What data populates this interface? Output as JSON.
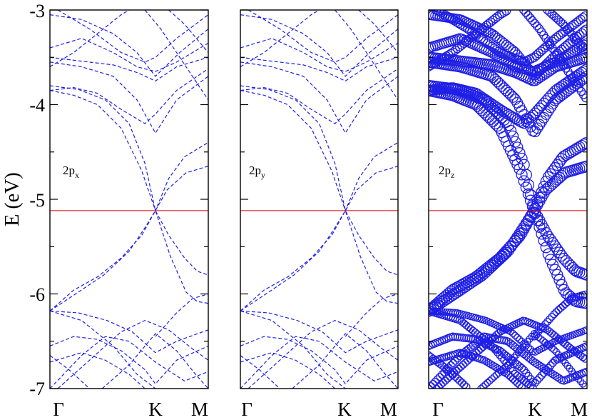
{
  "chart_data": {
    "type": "line",
    "ylabel": "E (eV)",
    "ylim": [
      -7,
      -3
    ],
    "y_ticks": [
      -3,
      -4,
      -5,
      -6,
      -7
    ],
    "y_tick_labels": [
      "-3",
      "-4",
      "-5",
      "-6",
      "-7"
    ],
    "x_ticks": [
      {
        "pos": 0.0,
        "label": "Γ"
      },
      {
        "pos": 0.666,
        "label": "K"
      },
      {
        "pos": 1.0,
        "label": "M"
      }
    ],
    "fermi_level": -5.12,
    "grid": false,
    "panels": [
      {
        "orbital": "2p",
        "subscript": "x",
        "style": "dashed",
        "weighting": "uniform"
      },
      {
        "orbital": "2p",
        "subscript": "y",
        "style": "dashed",
        "weighting": "uniform"
      },
      {
        "orbital": "2p",
        "subscript": "z",
        "style": "circles",
        "weighting": "projected"
      }
    ],
    "series": [
      {
        "w": 0.3,
        "values": [
          [
            0.0,
            -6.18
          ],
          [
            0.18,
            -6.2
          ],
          [
            0.36,
            -6.28
          ],
          [
            0.52,
            -6.4
          ],
          [
            0.666,
            -6.62
          ],
          [
            0.8,
            -6.5
          ],
          [
            1.0,
            -6.38
          ]
        ]
      },
      {
        "w": 0.35,
        "values": [
          [
            0.0,
            -6.18
          ],
          [
            0.2,
            -6.28
          ],
          [
            0.4,
            -6.55
          ],
          [
            0.55,
            -6.85
          ],
          [
            0.666,
            -7.0
          ]
        ]
      },
      {
        "w": 0.9,
        "values": [
          [
            0.0,
            -6.18
          ],
          [
            0.15,
            -5.96
          ],
          [
            0.3,
            -5.82
          ],
          [
            0.45,
            -5.62
          ],
          [
            0.58,
            -5.38
          ],
          [
            0.666,
            -5.12
          ],
          [
            0.75,
            -5.38
          ],
          [
            0.85,
            -5.62
          ],
          [
            0.93,
            -5.76
          ],
          [
            1.0,
            -5.8
          ]
        ]
      },
      {
        "w": 0.9,
        "values": [
          [
            0.0,
            -6.18
          ],
          [
            0.18,
            -5.98
          ],
          [
            0.34,
            -5.8
          ],
          [
            0.5,
            -5.55
          ],
          [
            0.6,
            -5.3
          ],
          [
            0.666,
            -5.12
          ],
          [
            0.76,
            -5.6
          ],
          [
            0.86,
            -5.98
          ],
          [
            0.93,
            -6.08
          ],
          [
            1.0,
            -6.1
          ]
        ]
      },
      {
        "w": 0.9,
        "values": [
          [
            0.0,
            -3.85
          ],
          [
            0.15,
            -3.9
          ],
          [
            0.3,
            -4.0
          ],
          [
            0.45,
            -4.25
          ],
          [
            0.58,
            -4.7
          ],
          [
            0.666,
            -5.12
          ],
          [
            0.75,
            -4.78
          ],
          [
            0.85,
            -4.55
          ],
          [
            1.0,
            -4.4
          ]
        ]
      },
      {
        "w": 0.9,
        "values": [
          [
            0.0,
            -3.8
          ],
          [
            0.18,
            -3.84
          ],
          [
            0.35,
            -3.95
          ],
          [
            0.5,
            -4.2
          ],
          [
            0.6,
            -4.62
          ],
          [
            0.666,
            -5.12
          ],
          [
            0.74,
            -4.9
          ],
          [
            0.86,
            -4.72
          ],
          [
            1.0,
            -4.65
          ]
        ]
      },
      {
        "w": 0.85,
        "values": [
          [
            0.0,
            -3.55
          ],
          [
            0.2,
            -3.6
          ],
          [
            0.4,
            -3.7
          ],
          [
            0.55,
            -3.95
          ],
          [
            0.666,
            -4.3
          ],
          [
            0.8,
            -3.95
          ],
          [
            1.0,
            -3.7
          ]
        ]
      },
      {
        "w": 0.85,
        "values": [
          [
            0.0,
            -3.5
          ],
          [
            0.2,
            -3.54
          ],
          [
            0.4,
            -3.58
          ],
          [
            0.55,
            -3.66
          ],
          [
            0.666,
            -3.75
          ],
          [
            0.8,
            -3.6
          ],
          [
            1.0,
            -3.5
          ]
        ]
      },
      {
        "w": 0.8,
        "values": [
          [
            0.0,
            -3.85
          ],
          [
            0.15,
            -3.82
          ],
          [
            0.3,
            -3.88
          ],
          [
            0.45,
            -4.05
          ],
          [
            0.6,
            -4.2
          ],
          [
            0.666,
            -4.1
          ],
          [
            0.8,
            -3.85
          ],
          [
            1.0,
            -3.62
          ]
        ]
      },
      {
        "w": 0.75,
        "values": [
          [
            0.0,
            -3.4
          ],
          [
            0.2,
            -3.3
          ],
          [
            0.4,
            -3.45
          ],
          [
            0.55,
            -3.6
          ],
          [
            0.666,
            -3.65
          ],
          [
            0.8,
            -3.55
          ],
          [
            1.0,
            -3.35
          ]
        ]
      },
      {
        "w": 0.7,
        "values": [
          [
            0.0,
            -3.05
          ],
          [
            0.2,
            -3.1
          ],
          [
            0.4,
            -3.25
          ],
          [
            0.55,
            -3.45
          ],
          [
            0.666,
            -3.7
          ],
          [
            0.82,
            -3.45
          ],
          [
            1.0,
            -3.2
          ]
        ]
      },
      {
        "w": 0.6,
        "values": [
          [
            0.05,
            -3.0
          ],
          [
            0.25,
            -3.2
          ],
          [
            0.45,
            -3.45
          ],
          [
            0.6,
            -3.55
          ],
          [
            0.666,
            -3.5
          ],
          [
            0.8,
            -3.3
          ],
          [
            1.0,
            -3.05
          ]
        ]
      },
      {
        "w": 0.55,
        "values": [
          [
            0.0,
            -3.6
          ],
          [
            0.15,
            -3.45
          ],
          [
            0.3,
            -3.25
          ],
          [
            0.45,
            -3.05
          ],
          [
            0.5,
            -3.0
          ]
        ]
      },
      {
        "w": 0.5,
        "values": [
          [
            0.6,
            -3.0
          ],
          [
            0.7,
            -3.2
          ],
          [
            0.8,
            -3.45
          ],
          [
            0.9,
            -3.7
          ],
          [
            1.0,
            -3.95
          ]
        ]
      },
      {
        "w": 0.5,
        "values": [
          [
            0.75,
            -3.0
          ],
          [
            0.85,
            -3.15
          ],
          [
            1.0,
            -3.45
          ]
        ]
      },
      {
        "w": 0.4,
        "values": [
          [
            0.0,
            -6.55
          ],
          [
            0.15,
            -6.45
          ],
          [
            0.3,
            -6.48
          ],
          [
            0.45,
            -6.6
          ],
          [
            0.6,
            -6.8
          ],
          [
            0.666,
            -6.95
          ],
          [
            0.8,
            -6.7
          ],
          [
            1.0,
            -6.55
          ]
        ]
      },
      {
        "w": 0.35,
        "values": [
          [
            0.0,
            -6.72
          ],
          [
            0.2,
            -6.62
          ],
          [
            0.35,
            -6.7
          ],
          [
            0.5,
            -6.85
          ],
          [
            0.6,
            -7.0
          ]
        ]
      },
      {
        "w": 0.4,
        "values": [
          [
            0.0,
            -7.0
          ],
          [
            0.2,
            -6.65
          ],
          [
            0.35,
            -6.45
          ],
          [
            0.5,
            -6.5
          ],
          [
            0.666,
            -6.72
          ],
          [
            0.85,
            -6.92
          ],
          [
            1.0,
            -6.82
          ]
        ]
      },
      {
        "w": 0.35,
        "values": [
          [
            0.05,
            -7.0
          ],
          [
            0.25,
            -6.7
          ],
          [
            0.45,
            -6.4
          ],
          [
            0.6,
            -6.28
          ],
          [
            0.75,
            -6.38
          ],
          [
            0.9,
            -6.58
          ],
          [
            1.0,
            -6.7
          ]
        ]
      },
      {
        "w": 0.4,
        "values": [
          [
            0.0,
            -6.65
          ],
          [
            0.12,
            -6.8
          ],
          [
            0.25,
            -7.0
          ]
        ]
      },
      {
        "w": 0.3,
        "values": [
          [
            0.33,
            -7.0
          ],
          [
            0.5,
            -6.75
          ],
          [
            0.666,
            -6.42
          ],
          [
            0.8,
            -6.6
          ],
          [
            0.92,
            -6.85
          ],
          [
            1.0,
            -7.0
          ]
        ]
      },
      {
        "w": 0.35,
        "values": [
          [
            0.666,
            -6.45
          ],
          [
            0.8,
            -6.2
          ],
          [
            0.9,
            -6.05
          ],
          [
            1.0,
            -6.0
          ]
        ]
      }
    ]
  }
}
